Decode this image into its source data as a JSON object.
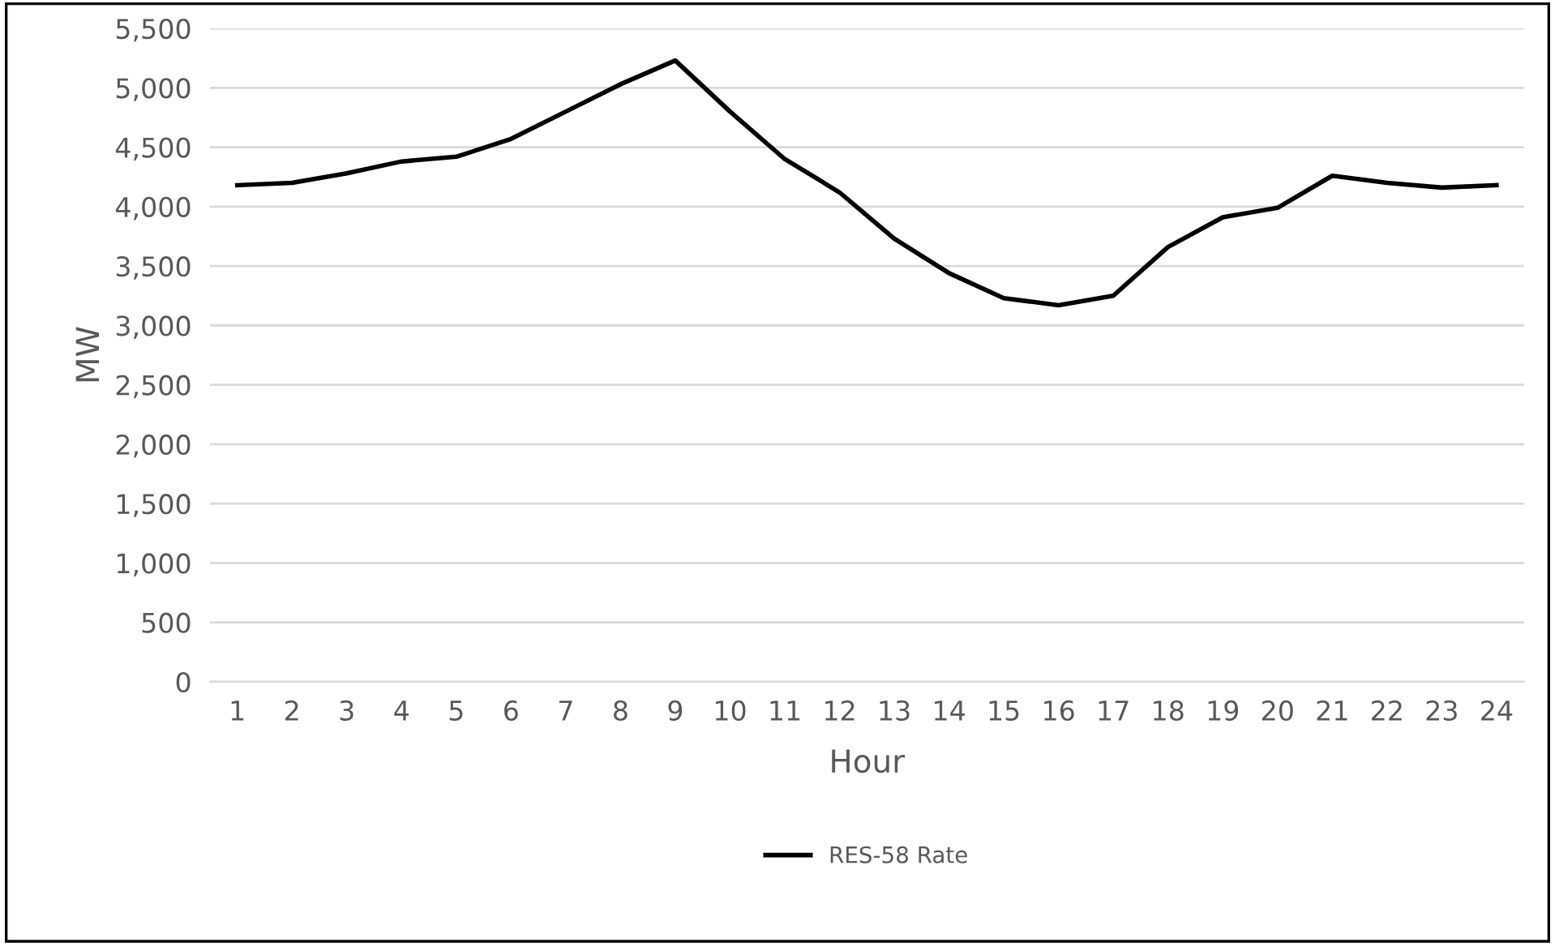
{
  "chart_data": {
    "type": "line",
    "xlabel": "Hour",
    "ylabel": "MW",
    "categories": [
      "1",
      "2",
      "3",
      "4",
      "5",
      "6",
      "7",
      "8",
      "9",
      "10",
      "11",
      "12",
      "13",
      "14",
      "15",
      "16",
      "17",
      "18",
      "19",
      "20",
      "21",
      "22",
      "23",
      "24"
    ],
    "series": [
      {
        "name": "RES-58 Rate",
        "color": "#000000",
        "values": [
          4180,
          4200,
          4280,
          4380,
          4420,
          4570,
          4800,
          5030,
          5230,
          4800,
          4400,
          4120,
          3730,
          3440,
          3230,
          3170,
          3250,
          3660,
          3910,
          3990,
          4260,
          4200,
          4160,
          4180
        ]
      }
    ],
    "ylim": [
      0,
      5500
    ],
    "yticks": [
      {
        "value": 0,
        "label": "0"
      },
      {
        "value": 500,
        "label": "500"
      },
      {
        "value": 1000,
        "label": "1,000"
      },
      {
        "value": 1500,
        "label": "1,500"
      },
      {
        "value": 2000,
        "label": "2,000"
      },
      {
        "value": 2500,
        "label": "2,500"
      },
      {
        "value": 3000,
        "label": "3,000"
      },
      {
        "value": 3500,
        "label": "3,500"
      },
      {
        "value": 4000,
        "label": "4,000"
      },
      {
        "value": 4500,
        "label": "4,500"
      },
      {
        "value": 5000,
        "label": "5,000"
      },
      {
        "value": 5500,
        "label": "5,500"
      }
    ],
    "grid": "y",
    "legend": "bottom",
    "marker": "none",
    "line_style": "solid"
  }
}
